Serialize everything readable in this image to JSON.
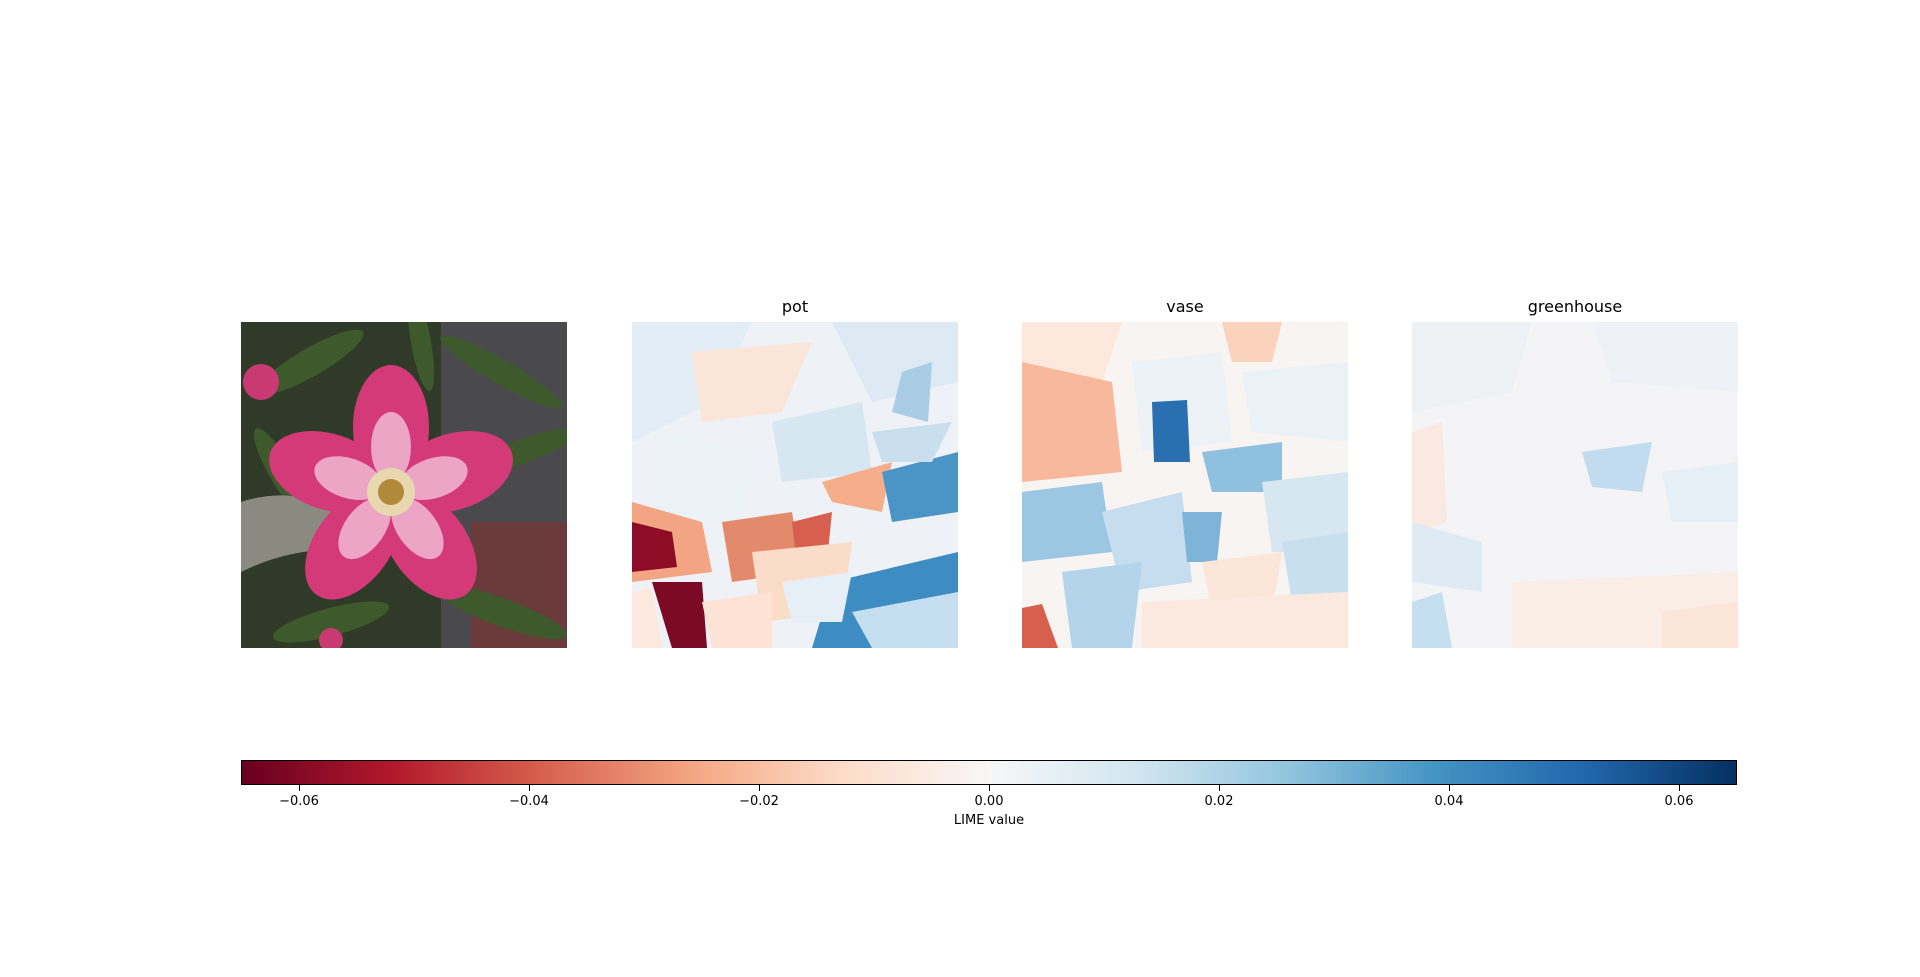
{
  "chart_data": {
    "type": "heatmap",
    "panels": [
      {
        "id": "original",
        "title": "",
        "kind": "photo"
      },
      {
        "id": "pot",
        "title": "pot",
        "kind": "heatmap"
      },
      {
        "id": "vase",
        "title": "vase",
        "kind": "heatmap"
      },
      {
        "id": "greenhouse",
        "title": "greenhouse",
        "kind": "heatmap"
      }
    ],
    "colorbar": {
      "label": "LIME value",
      "colormap": "RdBu",
      "range": [
        -0.065,
        0.065
      ],
      "ticks": [
        -0.06,
        -0.04,
        -0.02,
        0.0,
        0.02,
        0.04,
        0.06
      ],
      "tick_labels": [
        "−0.06",
        "−0.04",
        "−0.02",
        "0.00",
        "0.02",
        "0.04",
        "0.06"
      ],
      "colors": [
        "#67001f",
        "#b2182b",
        "#d6604d",
        "#f4a582",
        "#fddbc7",
        "#f7f7f7",
        "#d1e5f0",
        "#92c5de",
        "#4393c3",
        "#2166ac",
        "#053061"
      ]
    }
  }
}
